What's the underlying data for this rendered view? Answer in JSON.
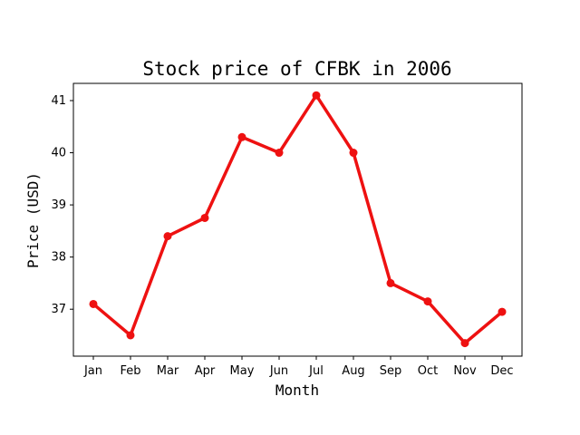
{
  "chart_data": {
    "type": "line",
    "title": "Stock price of CFBK in 2006",
    "xlabel": "Month",
    "ylabel": "Price (USD)",
    "categories": [
      "Jan",
      "Feb",
      "Mar",
      "Apr",
      "May",
      "Jun",
      "Jul",
      "Aug",
      "Sep",
      "Oct",
      "Nov",
      "Dec"
    ],
    "series": [
      {
        "values": [
          37.1,
          36.5,
          38.4,
          38.75,
          40.3,
          40.0,
          41.1,
          40.0,
          37.5,
          37.15,
          36.35,
          36.95
        ],
        "color": "#ee1111"
      }
    ],
    "ylim": [
      36.1,
      41.33
    ],
    "yticks": [
      37,
      38,
      39,
      40,
      41
    ],
    "grid": false,
    "legend": "none"
  }
}
